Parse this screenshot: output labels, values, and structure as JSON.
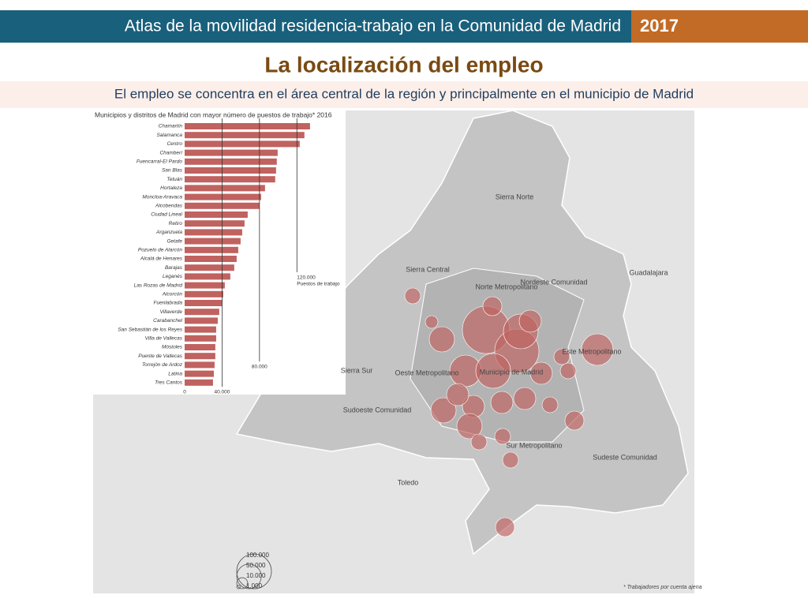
{
  "header": {
    "title": "Atlas de la movilidad residencia-trabajo en la Comunidad de Madrid",
    "year": "2017"
  },
  "heading": "La localización del empleo",
  "subtitle": "El empleo se concentra en el área central de la región y principalmente en el municipio de Madrid",
  "chart_data": {
    "type": "bar",
    "orientation": "horizontal",
    "title": "Municipios y distritos de Madrid con mayor número de puestos de trabajo* 2016",
    "categories": [
      "Chamartín",
      "Salamanca",
      "Centro",
      "Chamberí",
      "Fuencarral-El Pardo",
      "San Blas",
      "Tetuán",
      "Hortaleza",
      "Moncloa-Aravaca",
      "Alcobendas",
      "Ciudad Lineal",
      "Retiro",
      "Arganzuela",
      "Getafe",
      "Pozuelo de Alarcón",
      "Alcalá de Henares",
      "Barajas",
      "Leganés",
      "Las Rozas de Madrid",
      "Alcorcón",
      "Fuenlabrada",
      "Villaverde",
      "Carabanchel",
      "San Sebastián de los Reyes",
      "Villa de Vallecas",
      "Móstoles",
      "Puente de Vallecas",
      "Torrejón de Ardoz",
      "Latina",
      "Tres Cantos"
    ],
    "values": [
      134000,
      128000,
      123000,
      99400,
      98500,
      97700,
      96800,
      85900,
      81700,
      80000,
      67400,
      64000,
      61500,
      59800,
      57300,
      55600,
      53000,
      48800,
      42900,
      41300,
      40400,
      37000,
      35400,
      33700,
      33700,
      32800,
      32800,
      32000,
      31200,
      30300
    ],
    "color": "#c0625f",
    "xlim": [
      0,
      140000
    ],
    "xticks": [
      0,
      {
        "value": 40000,
        "label": "40.000"
      },
      {
        "value": 80000,
        "label": "80.000"
      },
      {
        "value": 120000,
        "label": "120.000"
      }
    ],
    "x_axis_unit": "Puestos de trabajo"
  },
  "map": {
    "regions": [
      "Sierra Norte",
      "Guadalajara",
      "Sierra Central",
      "Norte Metropolitano",
      "Nordeste Comunidad",
      "Este Metropolitano",
      "Municipio de Madrid",
      "Oeste Metropolitano",
      "Sierra Sur",
      "Sudoeste Comunidad",
      "Sur Metropolitano",
      "Sudeste Comunidad",
      "Toledo"
    ],
    "bubble_color": "#c0625f",
    "bubbles": [
      186000,
      162000,
      100000,
      40500,
      82600,
      100000,
      52900,
      52900,
      40500,
      40500,
      40500,
      52900,
      29800,
      82600,
      20700,
      20700,
      29800,
      20700,
      20700,
      20700,
      29800,
      13200,
      40500,
      20700,
      40500,
      20700
    ],
    "legend": [
      {
        "value": 100000,
        "label": "100.000"
      },
      {
        "value": 50000,
        "label": "50.000"
      },
      {
        "value": 10000,
        "label": "10.000"
      },
      {
        "value": 1000,
        "label": "1.000"
      }
    ],
    "footnote": "* Trabajadores por cuenta ajena"
  }
}
